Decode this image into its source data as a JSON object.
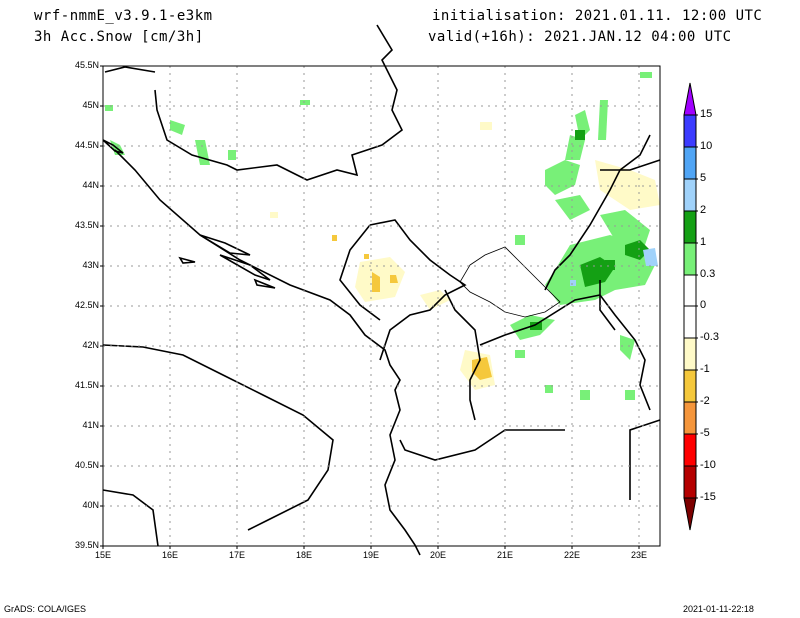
{
  "header": {
    "model": "wrf-nmmE_v3.9.1-e3km",
    "field": "3h Acc.Snow [cm/3h]",
    "init": "initialisation: 2021.01.11.  12:00 UTC",
    "valid": "valid(+16h): 2021.JAN.12 04:00 UTC"
  },
  "map": {
    "lat_labels": [
      "45.5N",
      "45N",
      "44.5N",
      "44N",
      "43.5N",
      "43N",
      "42.5N",
      "42N",
      "41.5N",
      "41N",
      "40.5N",
      "40N",
      "39.5N"
    ],
    "lon_labels": [
      "15E",
      "16E",
      "17E",
      "18E",
      "19E",
      "20E",
      "21E",
      "22E",
      "23E"
    ]
  },
  "colorbar": {
    "labels": [
      "15",
      "10",
      "5",
      "2",
      "1",
      "0.3",
      "0",
      "-0.3",
      "-1",
      "-2",
      "-5",
      "-10",
      "-15"
    ],
    "colors": [
      "#a000ff",
      "#3c3cff",
      "#50a5f5",
      "#a0d2fa",
      "#14a014",
      "#78f078",
      "#ffffff",
      "#fffac8",
      "#f5c83c",
      "#f5963c",
      "#ff0000",
      "#b40000",
      "#7d0000"
    ]
  },
  "footer": {
    "left": "GrADS: COLA/IGES",
    "right": "2021-01-11-22:18"
  }
}
